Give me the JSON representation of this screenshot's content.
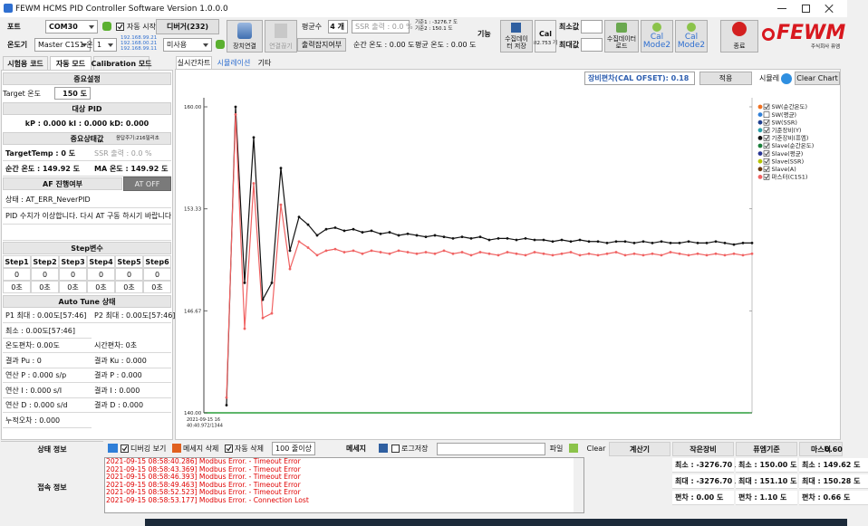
{
  "window": {
    "title": "FEWM HCMS PID Controller Software Version 1.0.0.0"
  },
  "toolbar": {
    "port_label": "포트",
    "port": "COM30",
    "auto_start": "자동 시작",
    "debugger": "디버거(232)",
    "connect": "장치연결",
    "disconnect": "연결끊기",
    "avg_count_label": "평균수",
    "avg_count": "4 개",
    "ssr_output": "SSR 출력 : 0.0 %",
    "ref1": "기준1 : -3276.7 도",
    "ref2": "기준2 : 150.1 도",
    "function_label": "기능",
    "save_data": "수집데이터 저장",
    "cal": "Cal",
    "cal_count": "82.753 개",
    "min_label": "최소값",
    "max_label": "최대값",
    "load_data": "수집데이터 로드",
    "cal_mode2_a": "Cal Mode2",
    "cal_mode2_b": "Cal Mode2",
    "exit": "종료",
    "logo": "FEWM",
    "logo_sub": "주식회사 퓨엠",
    "thermo_label": "온도기",
    "device": "Master C1S1 온",
    "channel": "1",
    "ips": [
      "192.168.99.21",
      "192.168.00.21",
      "192.168.99.11"
    ],
    "unused": "미사용",
    "output_check": "출력잡지여부",
    "instant_temp": "순간 온도 : 0.00 도",
    "avg_temp": "평균 온도 : 0.00 도"
  },
  "left_panel": {
    "tabs": [
      "시험용 코드",
      "자동 모드",
      "Calibration 모드"
    ],
    "settings_header": "중요설정",
    "target_label": "Target 온도",
    "target_value": "150 도",
    "pid_header": "대상 PID",
    "pid_values": "kP : 0.000  kI : 0.000  kD: 0.000",
    "status_header": "중요상태값",
    "period": "응답주기:216밀리초",
    "target_temp": "TargetTemp : 0 도",
    "ssr": "SSR 출력 : 0.0 %",
    "instant": "순간 온도 : 149.92 도",
    "ma": "MA 온도 : 149.92 도",
    "af_header": "AF 진행여부",
    "at_button": "AT OFF",
    "state": "상태 : AT_ERR_NeverPID",
    "message": "PID 수치가 이상합니다. 다시 AT 구동 하시기 바랍니다",
    "step_header": "Step변수",
    "steps": {
      "headers": [
        "Step1",
        "Step2",
        "Step3",
        "Step4",
        "Step5",
        "Step6"
      ],
      "rows": [
        [
          "0",
          "0",
          "0",
          "0",
          "0",
          "0"
        ],
        [
          "0초",
          "0초",
          "0초",
          "0초",
          "0초",
          "0초"
        ]
      ]
    },
    "autotune_header": "Auto Tune 상태",
    "autotune_rows": [
      [
        "P1 최대 : 0.00도[57:46]",
        "P2 최대 : 0.00도[57:46]"
      ],
      [
        "최소 : 0.00도[57:46]"
      ],
      [
        "온도편차: 0.00도",
        "시간편차: 0초"
      ],
      [
        "결과 Pu : 0",
        "결과 Ku : 0.000"
      ],
      [
        "연산 P : 0.000 s/p",
        "결과 P : 0.000"
      ],
      [
        "연산 I : 0.000 s/I",
        "결과 I : 0.000"
      ],
      [
        "연산 D : 0.000 s/d",
        "결과 D : 0.000"
      ],
      [
        "누적오차 : 0.000"
      ]
    ]
  },
  "center_panel": {
    "tabs": [
      "실시간차트",
      "시뮬레이션",
      "기타"
    ],
    "offset": "장비편차(CAL OFSET): 0.18",
    "apply": "적용",
    "simulation": "시뮬레",
    "clear_chart": "Clear Chart"
  },
  "chart_data": {
    "type": "line",
    "ylim": [
      140,
      160
    ],
    "yticks": [
      {
        "value": 160,
        "label": "160.00"
      },
      {
        "value": 153.33,
        "label": "153.33"
      },
      {
        "value": 146.67,
        "label": "146.67"
      },
      {
        "value": 140,
        "label": "140.00"
      }
    ],
    "x_start_label": [
      "2021-09-15 16",
      "40:40.972/1344"
    ],
    "legend": "right",
    "series": [
      {
        "name": "SW(순간온도)",
        "color": "#f07020",
        "checked": true
      },
      {
        "name": "SW(평균)",
        "color": "#2f7fd8",
        "checked": false
      },
      {
        "name": "SW(SSR)",
        "color": "#1f3f8f",
        "checked": true
      },
      {
        "name": "기준장비(Y)",
        "color": "#2aa0a8",
        "checked": true
      },
      {
        "name": "기준장비(퓨엠)",
        "color": "#111111",
        "checked": true,
        "values": [
          140.5,
          160.0,
          148.5,
          158.0,
          147.4,
          148.5,
          156.0,
          150.6,
          152.8,
          152.3,
          151.6,
          152.0,
          152.1,
          151.9,
          152.0,
          151.8,
          151.9,
          151.7,
          151.8,
          151.6,
          151.7,
          151.6,
          151.5,
          151.6,
          151.5,
          151.4,
          151.5,
          151.4,
          151.5,
          151.3,
          151.4,
          151.4,
          151.3,
          151.4,
          151.3,
          151.3,
          151.2,
          151.3,
          151.2,
          151.3,
          151.2,
          151.2,
          151.1,
          151.2,
          151.2,
          151.1,
          151.2,
          151.1,
          151.2,
          151.1,
          151.1,
          151.2,
          151.1,
          151.1,
          151.2,
          151.1,
          151.0,
          151.1,
          151.1
        ]
      },
      {
        "name": "Slave(순간온도)",
        "color": "#1a7f3a",
        "checked": true
      },
      {
        "name": "Slave(평균)",
        "color": "#283593",
        "checked": true
      },
      {
        "name": "Slave(SSR)",
        "color": "#b5c400",
        "checked": true
      },
      {
        "name": "Slave(A)",
        "color": "#6b3a10",
        "checked": true
      },
      {
        "name": "마스터(C1S1)",
        "color": "#f06262",
        "checked": true,
        "values": [
          141.0,
          159.5,
          145.5,
          155.0,
          146.2,
          146.5,
          153.6,
          149.4,
          151.2,
          150.8,
          150.3,
          150.6,
          150.7,
          150.5,
          150.6,
          150.4,
          150.6,
          150.5,
          150.4,
          150.6,
          150.5,
          150.4,
          150.5,
          150.4,
          150.6,
          150.4,
          150.5,
          150.3,
          150.5,
          150.4,
          150.3,
          150.5,
          150.4,
          150.3,
          150.5,
          150.4,
          150.3,
          150.4,
          150.5,
          150.3,
          150.4,
          150.3,
          150.4,
          150.5,
          150.3,
          150.4,
          150.3,
          150.4,
          150.3,
          150.5,
          150.4,
          150.3,
          150.4,
          150.3,
          150.4,
          150.3,
          150.4,
          150.3,
          150.4
        ]
      }
    ]
  },
  "bottom": {
    "status_info": "상태 정보",
    "connection_info": "접속 정보",
    "debug_view": "디버깅 보기",
    "delete_msg": "메세지 삭제",
    "auto_delete": "자동 삭제",
    "lines_limit": "100 줄이상",
    "message_label": "메세지",
    "log_save": "로그저장",
    "file": "파일",
    "log": [
      "2021-09-15 08:58:40.286] Modbus Error. - Timeout Error",
      "2021-09-15 08:58:43.369] Modbus Error. - Timeout Error",
      "2021-09-15 08:58:46.393] Modbus Error. - Timeout Error",
      "2021-09-15 08:58:49.463] Modbus Error. - Timeout Error",
      "2021-09-15 08:58:52.523] Modbus Error. - Timeout Error",
      "2021-09-15 08:58:53.177] Modbus Error. - Connection Lost"
    ]
  },
  "calculator": {
    "clear": "Clear",
    "title": "계산기",
    "headers": [
      "작은장비",
      "퓨엠기준",
      "마스터"
    ],
    "master_value": "0.60",
    "rows": [
      [
        "최소 : -3276.70 도",
        "최소 : 150.00 도",
        "최소 : 149.62 도"
      ],
      [
        "최대 : -3276.70 도",
        "최대 : 151.10 도",
        "최대 : 150.28 도"
      ],
      [
        "편차 : 0.00 도",
        "편차 : 1.10 도",
        "편차 : 0.66 도"
      ]
    ]
  }
}
